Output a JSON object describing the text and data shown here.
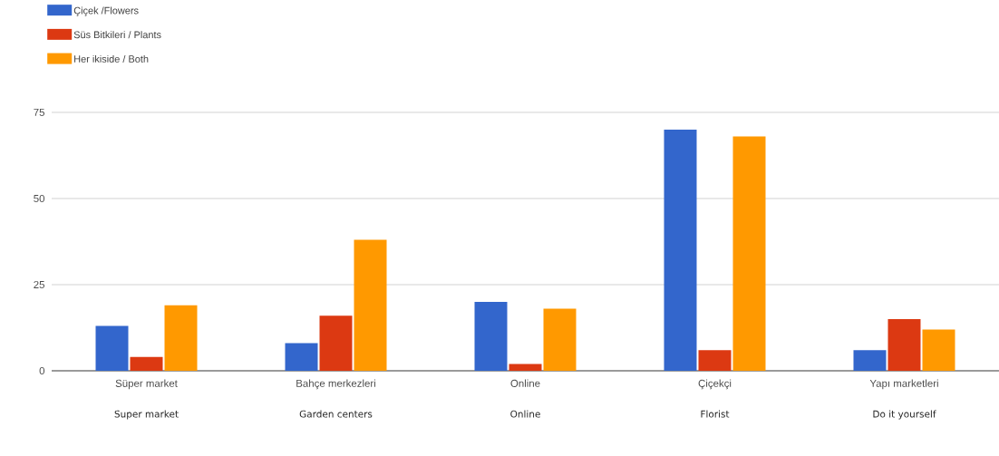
{
  "chart_data": {
    "type": "bar",
    "categories": [
      "Süper market",
      "Bahçe merkezleri",
      "Online",
      "Çiçekçi",
      "Yapı marketleri"
    ],
    "series": [
      {
        "name": "Çiçek  /Flowers",
        "color": "#3366cc",
        "values": [
          13,
          8,
          20,
          70,
          6
        ]
      },
      {
        "name": "Süs Bitkileri / Plants",
        "color": "#dc3912",
        "values": [
          4,
          16,
          2,
          6,
          15
        ]
      },
      {
        "name": "Her ikiside / Both",
        "color": "#ff9900",
        "values": [
          19,
          38,
          18,
          68,
          12
        ]
      }
    ],
    "annotations": [
      "Super market",
      "Garden centers",
      "Online",
      "Florist",
      "Do it yourself"
    ],
    "ylim": [
      0,
      75
    ],
    "yticks": [
      0,
      25,
      50,
      75
    ],
    "grid": "y",
    "legend": "top left"
  }
}
